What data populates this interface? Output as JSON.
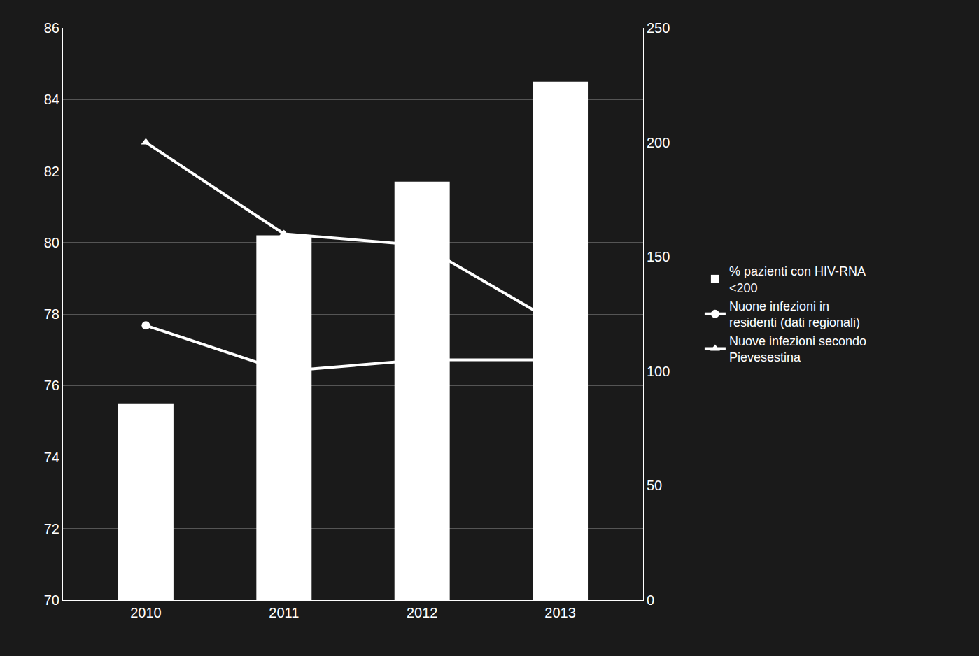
{
  "chart_data": {
    "type": "bar",
    "x": [
      2010,
      2011,
      2012,
      2013
    ],
    "xlim": [
      2009.4,
      2013.6
    ],
    "xticks": [
      2010,
      2011,
      2012,
      2013
    ],
    "ylim": [
      70,
      86
    ],
    "yticks": [
      70,
      72,
      74,
      76,
      78,
      80,
      82,
      84,
      86
    ],
    "y2lim": [
      0,
      250
    ],
    "y2ticks": [
      0,
      50,
      100,
      150,
      200,
      250
    ],
    "grid": true,
    "legend": "right",
    "series": [
      {
        "name": "% pazienti con HIV-RNA\n<200",
        "type": "bar",
        "color": "#ffffff",
        "values": [
          75.5,
          80.2,
          81.7,
          84.5
        ]
      },
      {
        "name": "Nuone infezioni in\nresidenti (dati regionali)",
        "type": "line",
        "axis": "y2",
        "color": "#ffffff",
        "marker": "circle",
        "values": [
          120,
          100,
          105,
          105
        ]
      },
      {
        "name": "Nuove infezioni secondo\nPievesestina",
        "type": "line",
        "axis": "y2",
        "color": "#ffffff",
        "marker": "triangle-up",
        "values": [
          200,
          160,
          155,
          120
        ]
      }
    ]
  }
}
